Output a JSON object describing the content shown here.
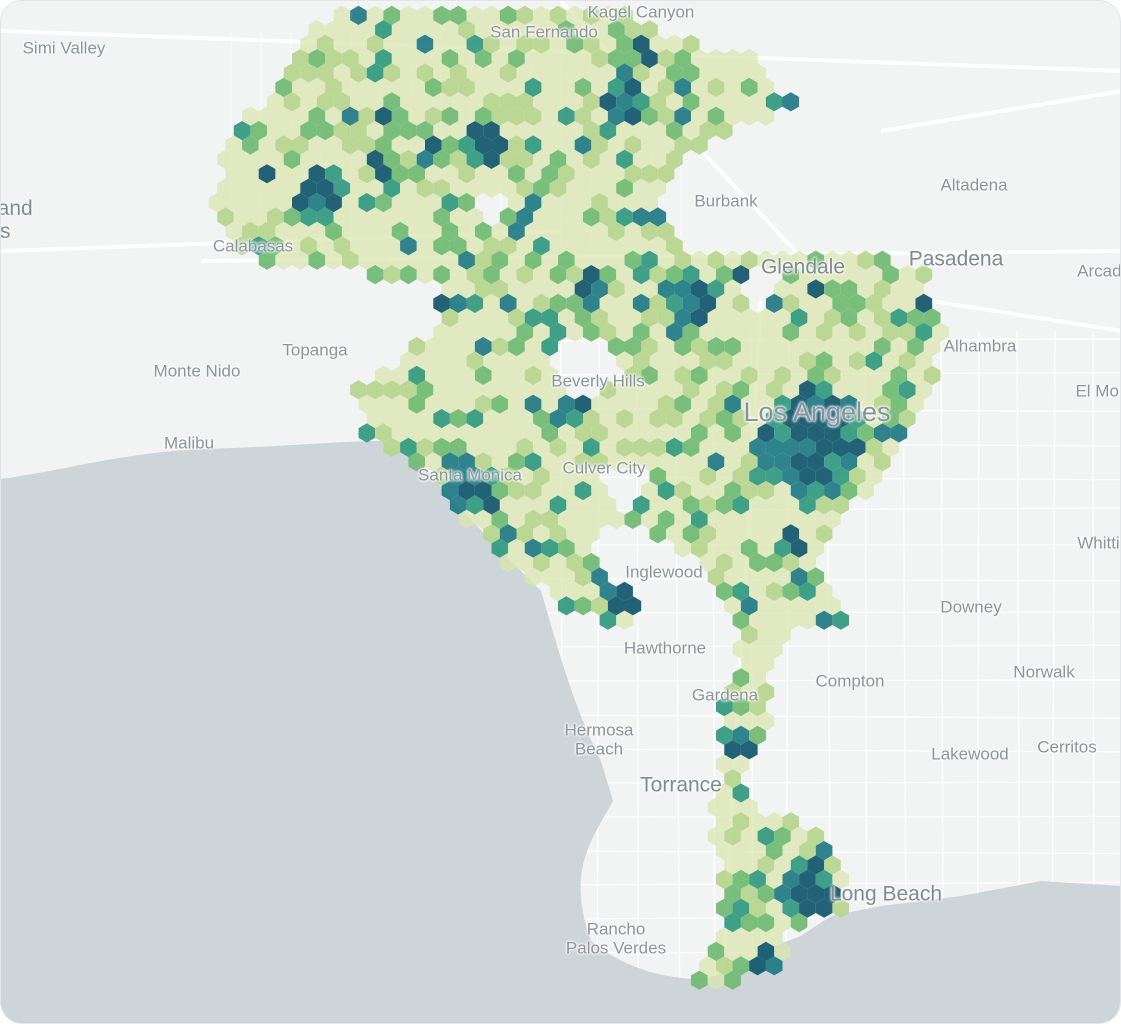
{
  "map": {
    "colors": {
      "land": "#f2f3f3",
      "water": "#cdd5d9",
      "road": "#ffffff",
      "label": "#8c959b"
    },
    "hex_color_scale": [
      "#d9e5ae",
      "#b5d68c",
      "#6fbb72",
      "#2f9a7e",
      "#1d7a83",
      "#0f566b"
    ],
    "labels": [
      "Kagel Canyon",
      "Simi Valley",
      "San Fernando",
      "Thousand\nOaks",
      "Calabasas",
      "Burbank",
      "Altadena",
      "Glendale",
      "Pasadena",
      "Arcadia",
      "Topanga",
      "Monte Nido",
      "Alhambra",
      "Malibu",
      "Beverly Hills",
      "Los Angeles",
      "El Monte",
      "Santa Monica",
      "Culver City",
      "Whittier",
      "Inglewood",
      "Downey",
      "Hawthorne",
      "Compton",
      "Norwalk",
      "Gardena",
      "Hermosa\nBeach",
      "Lakewood",
      "Cerritos",
      "Torrance",
      "Long Beach",
      "Rancho\nPalos Verdes"
    ]
  }
}
